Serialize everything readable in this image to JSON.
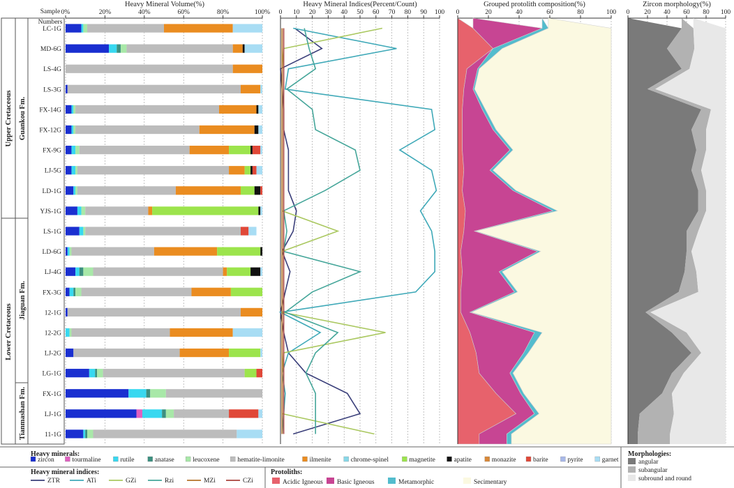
{
  "figure": {
    "legend_headers": {
      "heavy_minerals": "Heavy minerals:",
      "indices": "Heavy mineral indices:",
      "protoliths": "Protoliths:",
      "morphologies": "Morphologies:"
    }
  },
  "stratigraphy": {
    "header_top": "Sample",
    "header_bottom": "Numbers",
    "systems": [
      "Upper Cretaceous",
      "Lower Cretaceous"
    ],
    "formations": [
      "Guankou Fm.",
      "Jiaguan Fm.",
      "Tianmashan Fm."
    ]
  },
  "samples": [
    "LC-1G",
    "MD-6G",
    "LS-4G",
    "LS-3G",
    "FX-14G",
    "FX-12G",
    "FX-9G",
    "LJ-5G",
    "LD-1G",
    "YJS-1G",
    "LS-1G",
    "LD-6G",
    "LJ-4G",
    "FX-3G",
    "12-1G",
    "12-2G",
    "LJ-2G",
    "LG-1G",
    "FX-1G",
    "LJ-1G",
    "11-1G"
  ],
  "chart_data": [
    {
      "type": "bar",
      "orientation": "horizontal",
      "stacked": true,
      "title": "Heavy Mineral Volume(%)",
      "xlim": [
        0,
        100
      ],
      "xticks": [
        "0%",
        "20%",
        "40%",
        "60%",
        "80%",
        "100%"
      ],
      "categories": [
        "LC-1G",
        "MD-6G",
        "LS-4G",
        "LS-3G",
        "FX-14G",
        "FX-12G",
        "FX-9G",
        "LJ-5G",
        "LD-1G",
        "YJS-1G",
        "LS-1G",
        "LD-6G",
        "LJ-4G",
        "FX-3G",
        "12-1G",
        "12-2G",
        "LJ-2G",
        "LG-1G",
        "FX-1G",
        "LJ-1G",
        "11-1G"
      ],
      "series": [
        {
          "name": "zircon",
          "color": "#1a2fd0",
          "values": [
            8,
            22,
            0,
            1,
            3,
            3,
            3,
            3,
            4,
            6,
            7,
            1,
            5,
            2,
            1,
            0,
            4,
            12,
            32,
            36,
            9
          ]
        },
        {
          "name": "tourmaline",
          "color": "#e060c0",
          "values": [
            0,
            0,
            0,
            0,
            0,
            0,
            0,
            0,
            0,
            0,
            0,
            0,
            0,
            0,
            0,
            0,
            0,
            0,
            0,
            3,
            0
          ]
        },
        {
          "name": "rutile",
          "color": "#38d8f0",
          "values": [
            1,
            4,
            0,
            0,
            1,
            1,
            2,
            2,
            1,
            2,
            2,
            1,
            2,
            2,
            0,
            2,
            0,
            3,
            9,
            10,
            1
          ]
        },
        {
          "name": "anatase",
          "color": "#3c9080",
          "values": [
            0,
            2,
            0,
            0,
            0,
            0,
            0,
            0,
            0,
            0,
            0,
            0,
            2,
            1,
            0,
            0,
            0,
            1,
            2,
            2,
            1
          ]
        },
        {
          "name": "leucoxene",
          "color": "#a8e8a8",
          "values": [
            2,
            3,
            0,
            0,
            1,
            1,
            2,
            1,
            1,
            2,
            1,
            1,
            5,
            3,
            0,
            1,
            0,
            3,
            8,
            4,
            3
          ]
        },
        {
          "name": "hematite-limonite",
          "color": "#bcbcbc",
          "values": [
            39,
            54,
            85,
            88,
            73,
            63,
            56,
            77,
            50,
            32,
            79,
            42,
            66,
            56,
            88,
            50,
            54,
            72,
            49,
            28,
            73
          ]
        },
        {
          "name": "ilmenite",
          "color": "#ea8c20",
          "values": [
            35,
            5,
            15,
            10,
            19,
            28,
            20,
            8,
            33,
            2,
            0,
            32,
            2,
            20,
            11,
            32,
            25,
            0,
            0,
            0,
            0
          ]
        },
        {
          "name": "chrome-spinel",
          "color": "#88d8e8",
          "values": [
            0,
            0,
            0,
            0,
            0,
            0,
            0,
            0,
            0,
            0,
            0,
            0,
            0,
            0,
            0,
            0,
            0,
            0,
            0,
            0,
            0
          ]
        },
        {
          "name": "magnetite",
          "color": "#9ce44c",
          "values": [
            0,
            0,
            0,
            0,
            0,
            0,
            11,
            3,
            7,
            54,
            0,
            22,
            12,
            16,
            0,
            0,
            16,
            6,
            0,
            0,
            0
          ]
        },
        {
          "name": "apatite",
          "color": "#111111",
          "values": [
            0,
            1,
            0,
            0,
            1,
            2,
            1,
            1,
            3,
            1,
            0,
            1,
            5,
            0,
            0,
            0,
            0,
            0,
            0,
            0,
            0
          ]
        },
        {
          "name": "monazite",
          "color": "#d88838",
          "values": [
            0,
            0,
            0,
            0,
            0,
            0,
            0,
            0,
            0,
            0,
            0,
            0,
            0,
            0,
            0,
            0,
            0,
            0,
            0,
            0,
            0
          ]
        },
        {
          "name": "barite",
          "color": "#e04838",
          "values": [
            0,
            0,
            0,
            0,
            0,
            0,
            4,
            2,
            1,
            0,
            4,
            0,
            0,
            0,
            0,
            0,
            0,
            3,
            0,
            15,
            0
          ]
        },
        {
          "name": "pyrite",
          "color": "#a8b8e8",
          "values": [
            0,
            0,
            0,
            0,
            0,
            0,
            0,
            0,
            0,
            0,
            0,
            0,
            0,
            0,
            0,
            0,
            0,
            0,
            0,
            0,
            0
          ]
        },
        {
          "name": "garnet",
          "color": "#a8ddf4",
          "values": [
            15,
            9,
            0,
            1,
            2,
            2,
            1,
            3,
            0,
            1,
            4,
            0,
            1,
            0,
            0,
            15,
            1,
            0,
            0,
            2,
            13
          ]
        }
      ]
    },
    {
      "type": "line",
      "orientation": "vertical",
      "title": "Heavy Mineral Indices(Percent/Count)",
      "xlim": [
        0,
        100
      ],
      "xticks": [
        "0",
        "10",
        "20",
        "30",
        "40",
        "50",
        "60",
        "70",
        "80",
        "90",
        "100"
      ],
      "categories": [
        "LC-1G",
        "MD-6G",
        "LS-4G",
        "LS-3G",
        "FX-14G",
        "FX-12G",
        "FX-9G",
        "LJ-5G",
        "LD-1G",
        "YJS-1G",
        "LS-1G",
        "LD-6G",
        "LJ-4G",
        "FX-3G",
        "12-1G",
        "12-2G",
        "LJ-2G",
        "LG-1G",
        "FX-1G",
        "LJ-1G",
        "11-1G"
      ],
      "series": [
        {
          "name": "ZTR",
          "color": "#3a3f7a",
          "values": [
            9,
            26,
            0,
            1,
            2,
            2,
            5,
            5,
            5,
            10,
            8,
            1,
            6,
            3,
            0,
            2,
            5,
            16,
            42,
            50,
            8
          ]
        },
        {
          "name": "ATi",
          "color": "#3fa9b8",
          "values": [
            8,
            73,
            5,
            3,
            95,
            97,
            75,
            95,
            98,
            88,
            95,
            97,
            97,
            85,
            0,
            25,
            5,
            1,
            3,
            2,
            1
          ]
        },
        {
          "name": "GZi",
          "color": "#aac860",
          "values": [
            64,
            2,
            1,
            1,
            1,
            1,
            1,
            1,
            1,
            1,
            36,
            1,
            1,
            1,
            1,
            66,
            2,
            1,
            1,
            1,
            59
          ]
        },
        {
          "name": "Rzi",
          "color": "#45a69a",
          "values": [
            15,
            18,
            22,
            4,
            20,
            22,
            47,
            50,
            28,
            2,
            4,
            2,
            50,
            20,
            3,
            36,
            22,
            16,
            22,
            22,
            22
          ]
        },
        {
          "name": "MZi",
          "color": "#b4732a",
          "values": [
            1,
            1,
            1,
            1,
            1,
            1,
            1,
            1,
            1,
            1,
            1,
            1,
            1,
            1,
            1,
            1,
            1,
            1,
            1,
            1,
            1
          ]
        },
        {
          "name": "CZi",
          "color": "#a9423c",
          "values": [
            2,
            2,
            2,
            2,
            2,
            2,
            2,
            2,
            2,
            2,
            2,
            2,
            2,
            2,
            2,
            2,
            2,
            2,
            2,
            2,
            2
          ]
        }
      ]
    },
    {
      "type": "area",
      "orientation": "vertical",
      "stacked": true,
      "title": "Grouped protolith composition(%)",
      "xlim": [
        0,
        100
      ],
      "xticks": [
        "0",
        "20",
        "40",
        "60",
        "80",
        "100"
      ],
      "categories": [
        "LC-1G",
        "MD-6G",
        "LS-4G",
        "LS-3G",
        "FX-14G",
        "FX-12G",
        "FX-9G",
        "LJ-5G",
        "LD-1G",
        "YJS-1G",
        "LS-1G",
        "LD-6G",
        "LJ-4G",
        "FX-3G",
        "12-1G",
        "12-2G",
        "LJ-2G",
        "LG-1G",
        "FX-1G",
        "LJ-1G",
        "11-1G"
      ],
      "series": [
        {
          "name": "Acidic Igneous",
          "color": "#e7626c",
          "values": [
            10,
            23,
            6,
            4,
            3,
            3,
            3,
            4,
            3,
            5,
            4,
            2,
            3,
            2,
            2,
            8,
            12,
            14,
            25,
            38,
            14
          ]
        },
        {
          "name": "Basic Igneous",
          "color": "#c74593",
          "values": [
            45,
            0,
            7,
            6,
            13,
            20,
            31,
            17,
            33,
            57,
            7,
            50,
            24,
            35,
            6,
            42,
            31,
            20,
            16,
            12,
            18
          ]
        },
        {
          "name": "Metamorphic",
          "color": "#53bccd",
          "values": [
            4,
            6,
            1,
            1,
            2,
            2,
            2,
            2,
            2,
            3,
            1,
            2,
            2,
            2,
            1,
            5,
            3,
            2,
            2,
            3,
            3
          ]
        },
        {
          "name": "Secimentary",
          "color": "#fbf9e1",
          "values": [
            41,
            71,
            86,
            89,
            82,
            75,
            64,
            77,
            62,
            35,
            88,
            46,
            71,
            61,
            91,
            45,
            54,
            64,
            57,
            47,
            65
          ]
        }
      ]
    },
    {
      "type": "area",
      "orientation": "vertical",
      "stacked": true,
      "title": "Zircon morphology(%)",
      "xlim": [
        0,
        100
      ],
      "xticks": [
        "0",
        "20",
        "40",
        "60",
        "80",
        "100"
      ],
      "categories": [
        "LC-1G",
        "MD-6G",
        "LS-4G",
        "LS-3G",
        "FX-14G",
        "FX-12G",
        "FX-9G",
        "LJ-5G",
        "LD-1G",
        "YJS-1G",
        "LS-1G",
        "LD-6G",
        "LJ-4G",
        "FX-3G",
        "12-1G",
        "12-2G",
        "LJ-2G",
        "LG-1G",
        "FX-1G",
        "LJ-1G",
        "11-1G"
      ],
      "series": [
        {
          "name": "angular",
          "color": "#7a7a7a",
          "values": [
            55,
            40,
            55,
            20,
            75,
            65,
            70,
            65,
            72,
            72,
            60,
            60,
            58,
            52,
            18,
            45,
            65,
            45,
            35,
            12,
            10
          ]
        },
        {
          "name": "subangular",
          "color": "#b2b2b2",
          "values": [
            12,
            28,
            8,
            8,
            10,
            15,
            10,
            10,
            8,
            8,
            12,
            5,
            12,
            20,
            5,
            15,
            10,
            12,
            10,
            35,
            33
          ]
        },
        {
          "name": "subround and round",
          "color": "#e8e8e8",
          "values": [
            33,
            32,
            37,
            72,
            15,
            20,
            20,
            25,
            20,
            20,
            28,
            35,
            30,
            28,
            77,
            40,
            25,
            43,
            55,
            53,
            57
          ]
        }
      ]
    }
  ]
}
